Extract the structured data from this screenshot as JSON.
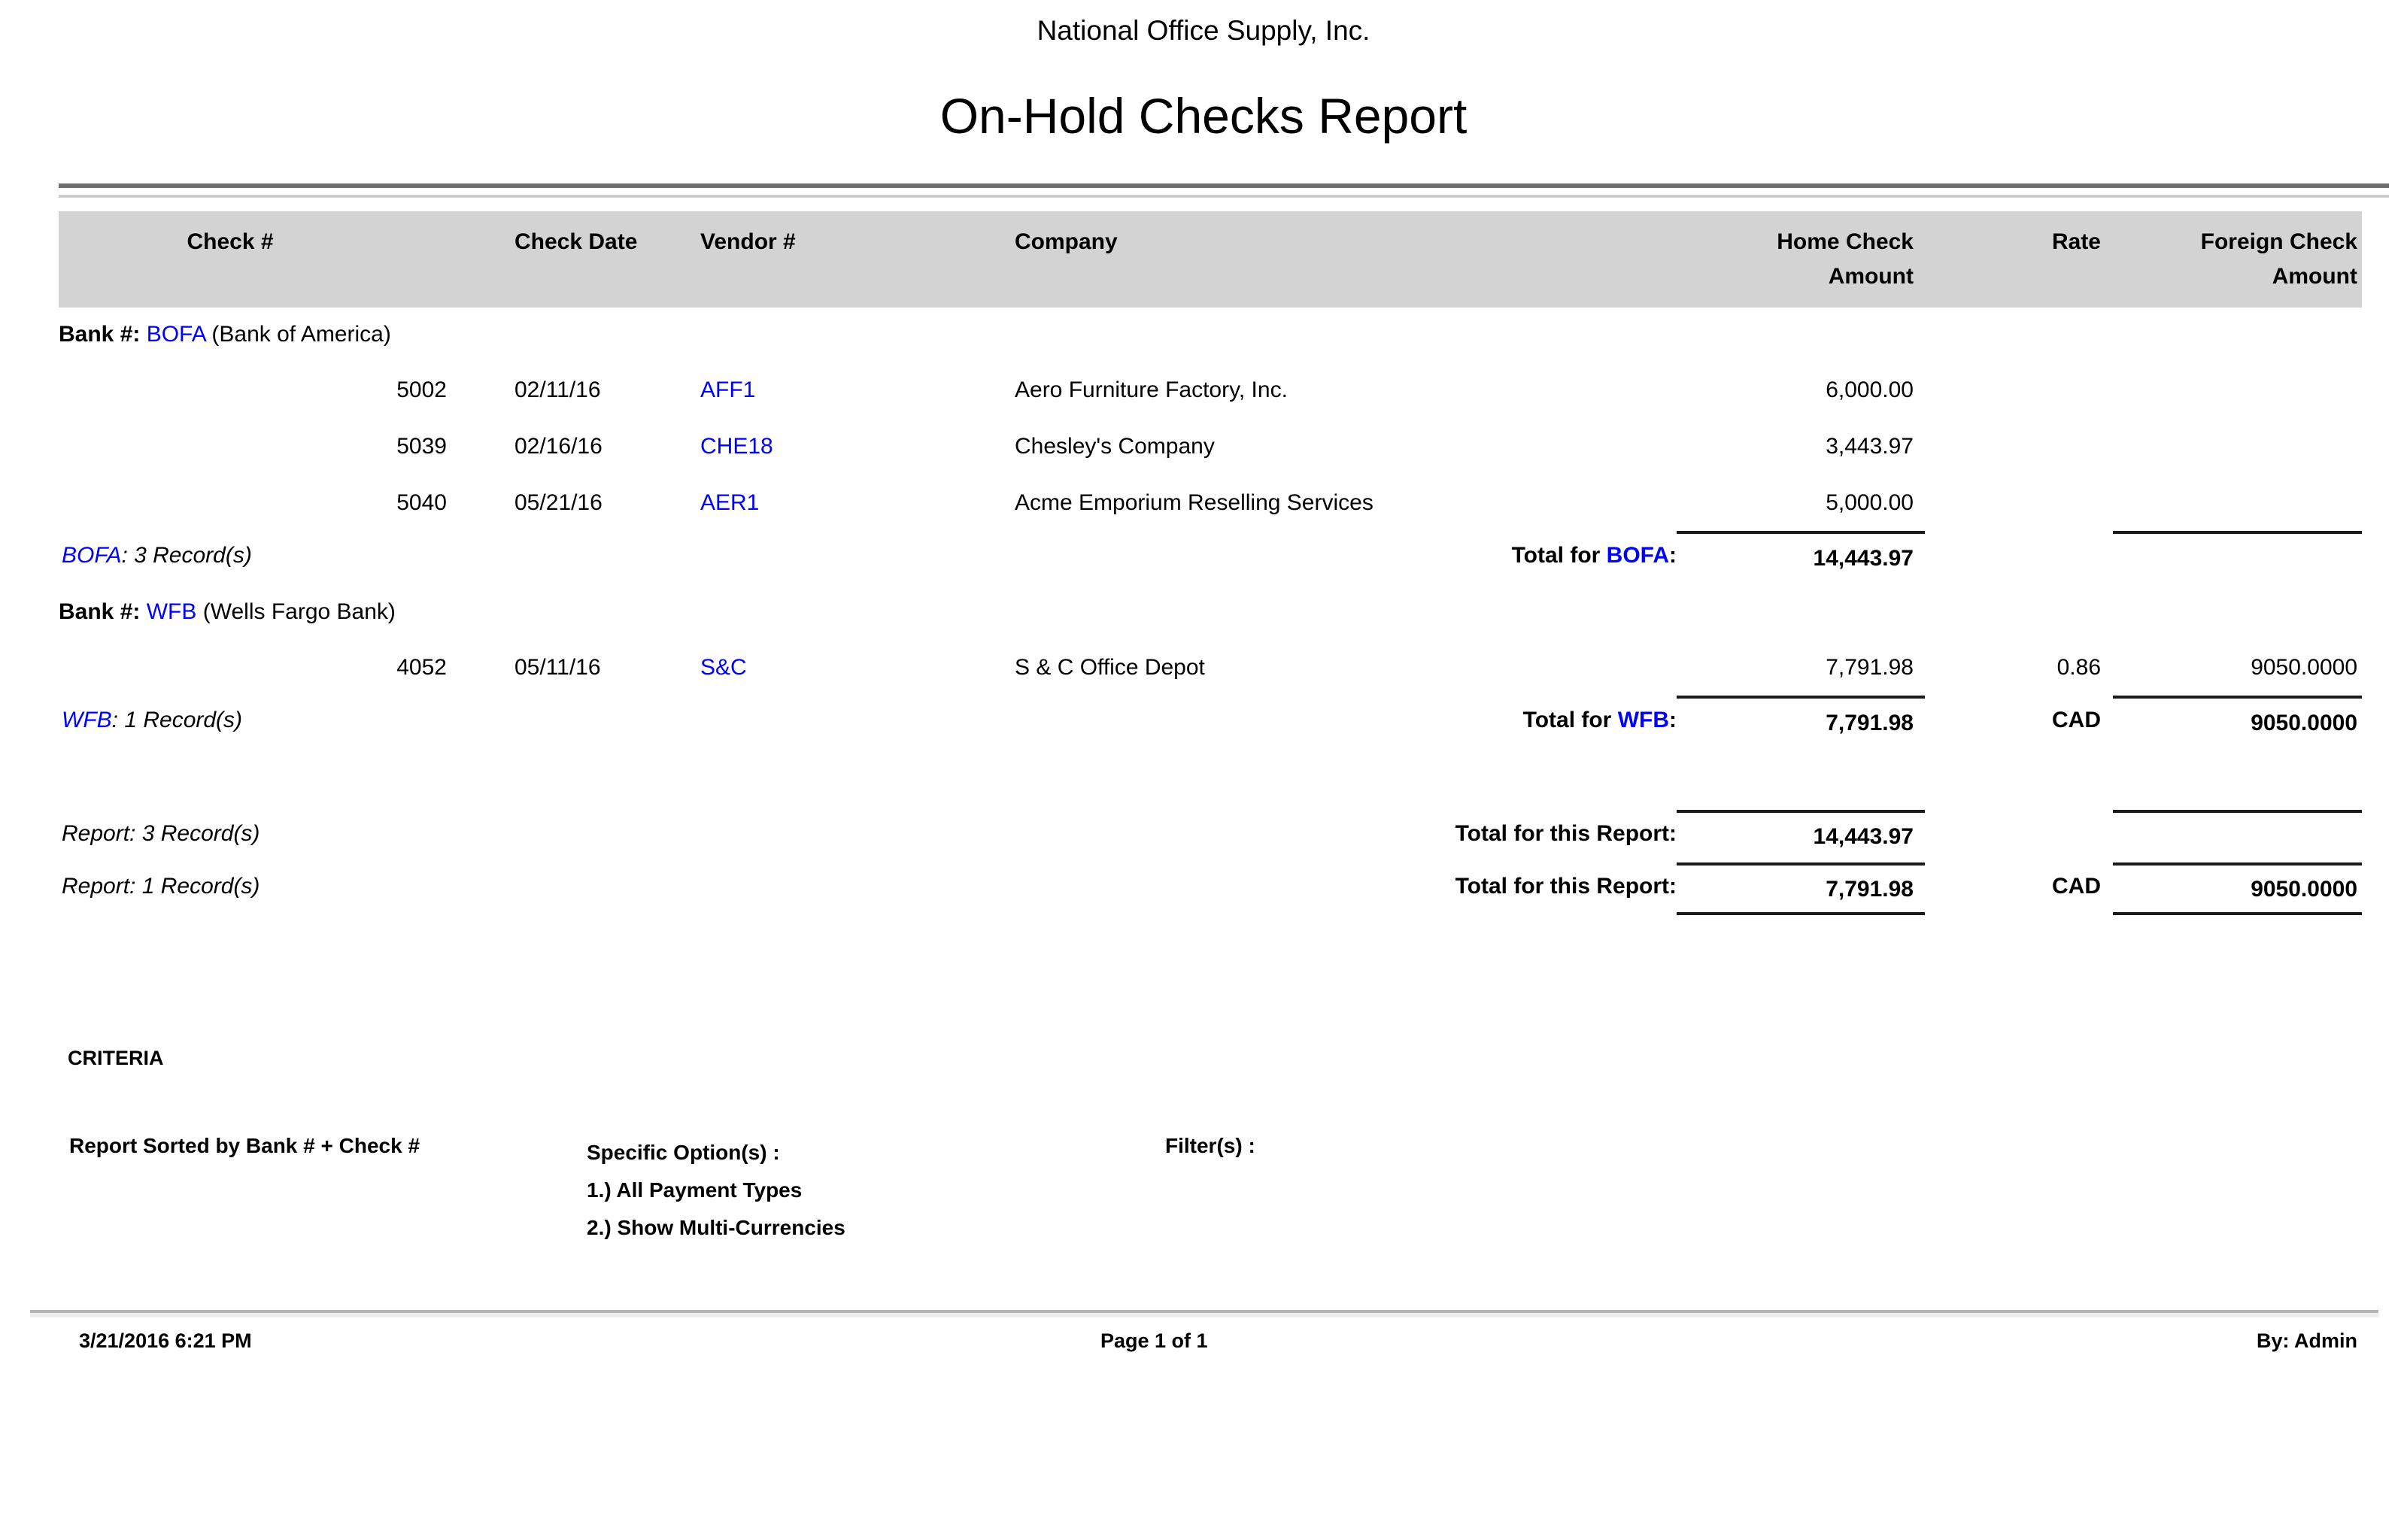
{
  "page": {
    "company_name": "National Office Supply, Inc.",
    "report_title": "On-Hold Checks Report"
  },
  "colors": {
    "link_blue": "#0000ff",
    "header_band": "#d3d3d3"
  },
  "table": {
    "headers": {
      "check_no": "Check #",
      "check_date": "Check Date",
      "vendor_no": "Vendor #",
      "company": "Company",
      "home_amount_l1": "Home Check",
      "home_amount_l2": "Amount",
      "rate": "Rate",
      "foreign_amount_l1": "Foreign Check",
      "foreign_amount_l2": "Amount"
    },
    "groups": [
      {
        "bank_prefix": "Bank #:",
        "bank_code": "BOFA",
        "bank_name": "(Bank of America)",
        "rows": [
          {
            "check_no": "5002",
            "check_date": "02/11/16",
            "vendor_no": "AFF1",
            "company": "Aero Furniture Factory, Inc.",
            "home_amount": "6,000.00",
            "rate": "",
            "foreign_amount": ""
          },
          {
            "check_no": "5039",
            "check_date": "02/16/16",
            "vendor_no": "CHE18",
            "company": "Chesley's Company",
            "home_amount": "3,443.97",
            "rate": "",
            "foreign_amount": ""
          },
          {
            "check_no": "5040",
            "check_date": "05/21/16",
            "vendor_no": "AER1",
            "company": "Acme Emporium Reselling Services",
            "home_amount": "5,000.00",
            "rate": "",
            "foreign_amount": ""
          }
        ],
        "records_code": "BOFA",
        "records_text": ": 3 Record(s)",
        "total_prefix": "Total for ",
        "total_code": "BOFA",
        "total_colon": ":",
        "total_home": "14,443.97",
        "total_rate": "",
        "total_foreign": ""
      },
      {
        "bank_prefix": "Bank #:",
        "bank_code": "WFB",
        "bank_name": "(Wells Fargo Bank)",
        "rows": [
          {
            "check_no": "4052",
            "check_date": "05/11/16",
            "vendor_no": "S&C",
            "company": "S & C Office Depot",
            "home_amount": "7,791.98",
            "rate": "0.86",
            "foreign_amount": "9050.0000"
          }
        ],
        "records_code": "WFB",
        "records_text": ": 1 Record(s)",
        "total_prefix": "Total for ",
        "total_code": "WFB",
        "total_colon": ":",
        "total_home": "7,791.98",
        "total_rate": "CAD",
        "total_foreign": "9050.0000"
      }
    ],
    "report_totals": [
      {
        "records_text": "Report: 3 Record(s)",
        "label": "Total for this Report:",
        "home": "14,443.97",
        "rate": "",
        "foreign": ""
      },
      {
        "records_text": "Report: 1 Record(s)",
        "label": "Total for this Report:",
        "home": "7,791.98",
        "rate": "CAD",
        "foreign": "9050.0000"
      }
    ]
  },
  "criteria": {
    "heading": "CRITERIA",
    "sorted_by": "Report Sorted by Bank # + Check #",
    "specific_options_label": "Specific Option(s) :",
    "options": [
      "1.) All Payment Types",
      "2.) Show Multi-Currencies"
    ],
    "filters_label": "Filter(s) :"
  },
  "footer": {
    "datetime": "3/21/2016 6:21 PM",
    "page": "Page 1 of 1",
    "by": "By: Admin"
  }
}
